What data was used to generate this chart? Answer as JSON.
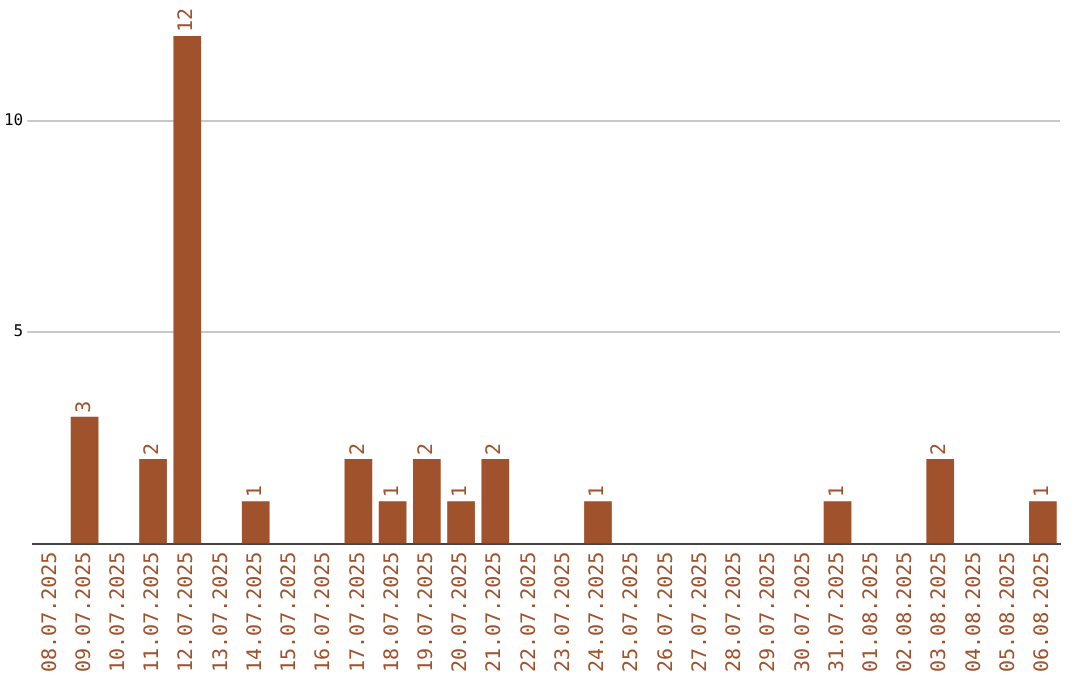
{
  "chart_data": {
    "type": "bar",
    "categories": [
      "08.07.2025",
      "09.07.2025",
      "10.07.2025",
      "11.07.2025",
      "12.07.2025",
      "13.07.2025",
      "14.07.2025",
      "15.07.2025",
      "16.07.2025",
      "17.07.2025",
      "18.07.2025",
      "19.07.2025",
      "20.07.2025",
      "21.07.2025",
      "22.07.2025",
      "23.07.2025",
      "24.07.2025",
      "25.07.2025",
      "26.07.2025",
      "27.07.2025",
      "28.07.2025",
      "29.07.2025",
      "30.07.2025",
      "31.07.2025",
      "01.08.2025",
      "02.08.2025",
      "03.08.2025",
      "04.08.2025",
      "05.08.2025",
      "06.08.2025"
    ],
    "values": [
      0,
      3,
      0,
      2,
      12,
      0,
      1,
      0,
      0,
      2,
      1,
      2,
      1,
      2,
      0,
      0,
      1,
      0,
      0,
      0,
      0,
      0,
      0,
      1,
      0,
      0,
      2,
      0,
      0,
      1
    ],
    "value_labels": [
      null,
      "3",
      null,
      "2",
      "12",
      null,
      "1",
      null,
      null,
      "2",
      "1",
      "2",
      "1",
      "2",
      null,
      null,
      "1",
      null,
      null,
      null,
      null,
      null,
      null,
      "1",
      null,
      null,
      "2",
      null,
      null,
      "1"
    ],
    "color": "#a0522d",
    "ylim": [
      0,
      12
    ],
    "yticks": [
      5,
      10
    ],
    "grid": "y",
    "legend": false
  }
}
